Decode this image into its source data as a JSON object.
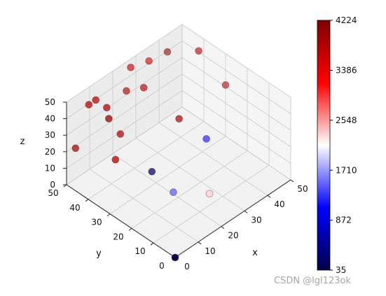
{
  "chart_data": {
    "type": "scatter",
    "projection": "3d",
    "xlabel": "x",
    "ylabel": "y",
    "zlabel": "z",
    "x_ticks": [
      "0",
      "10",
      "20",
      "30",
      "40",
      "50"
    ],
    "y_ticks": [
      "0",
      "10",
      "20",
      "30",
      "40",
      "50"
    ],
    "z_ticks": [
      "0",
      "10",
      "20",
      "30",
      "40",
      "50"
    ],
    "xlim": [
      0,
      50
    ],
    "ylim": [
      0,
      50
    ],
    "zlim": [
      0,
      50
    ],
    "grid": true,
    "colormap": "seismic",
    "colorbar": {
      "min": 35,
      "max": 4224,
      "ticks": [
        "35",
        "872",
        "1710",
        "2548",
        "3386",
        "4224"
      ],
      "tick_values": [
        35,
        872,
        1710,
        2548,
        3386,
        4224
      ],
      "colors": [
        "#00004c",
        "#0000ff",
        "#ffffff",
        "#ff0000",
        "#800000"
      ]
    },
    "points": [
      {
        "x": 2,
        "y": 48,
        "z": 22,
        "c": 3900
      },
      {
        "x": 4,
        "y": 44,
        "z": 50,
        "c": 3800
      },
      {
        "x": 7,
        "y": 44,
        "z": 50,
        "c": 3750
      },
      {
        "x": 8,
        "y": 40,
        "z": 48,
        "c": 3850
      },
      {
        "x": 7,
        "y": 38,
        "z": 44,
        "c": 4000
      },
      {
        "x": 24,
        "y": 46,
        "z": 52,
        "c": 3700
      },
      {
        "x": 24,
        "y": 40,
        "z": 45,
        "c": 3800
      },
      {
        "x": 30,
        "y": 44,
        "z": 52,
        "c": 3600
      },
      {
        "x": 38,
        "y": 44,
        "z": 50,
        "c": 4100
      },
      {
        "x": 44,
        "y": 36,
        "z": 52,
        "c": 3900
      },
      {
        "x": 24,
        "y": 48,
        "z": 36,
        "c": 3950
      },
      {
        "x": 12,
        "y": 38,
        "z": 30,
        "c": 3800
      },
      {
        "x": 28,
        "y": 28,
        "z": 33,
        "c": 3900
      },
      {
        "x": 8,
        "y": 36,
        "z": 20,
        "c": 3850
      },
      {
        "x": 50,
        "y": 30,
        "z": 31,
        "c": 3800
      },
      {
        "x": 20,
        "y": 32,
        "z": 5,
        "c": 200
      },
      {
        "x": 37,
        "y": 25,
        "z": 15,
        "c": 1200
      },
      {
        "x": 18,
        "y": 20,
        "z": 5,
        "c": 1500
      },
      {
        "x": 28,
        "y": 14,
        "z": 0,
        "c": 2300
      },
      {
        "x": 0,
        "y": 0,
        "z": 0,
        "c": 35
      }
    ]
  },
  "watermark": "CSDN @lgl123ok"
}
